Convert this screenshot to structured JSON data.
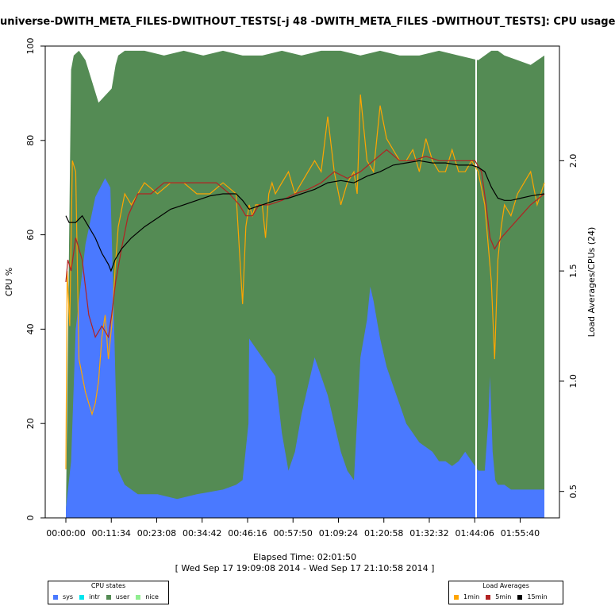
{
  "chart_data": {
    "type": "area",
    "title": "universe-DWITH_META_FILES-DWITHOUT_TESTS[-j 48 -DWITH_META_FILES -DWITHOUT_TESTS]: CPU usage",
    "ylabel": "CPU %",
    "y2label": "Load Averages/CPUs (24)",
    "xlabel": "Elapsed Time: 02:01:50",
    "xsubtitle": "[ Wed Sep 17 19:09:08 2014 - Wed Sep 17 21:10:58 2014 ]",
    "ylim": [
      0,
      100
    ],
    "y2lim": [
      0.38,
      2.52
    ],
    "yticks": [
      0,
      20,
      40,
      60,
      80,
      100
    ],
    "y2ticks": [
      0.5,
      1.0,
      1.5,
      2.0
    ],
    "xlim": [
      0,
      7310
    ],
    "xticks": [
      {
        "s": 0,
        "label": "00:00:00"
      },
      {
        "s": 694,
        "label": "00:11:34"
      },
      {
        "s": 1388,
        "label": "00:23:08"
      },
      {
        "s": 2082,
        "label": "00:34:42"
      },
      {
        "s": 2776,
        "label": "00:46:16"
      },
      {
        "s": 3470,
        "label": "00:57:50"
      },
      {
        "s": 4164,
        "label": "01:09:24"
      },
      {
        "s": 4858,
        "label": "01:20:58"
      },
      {
        "s": 5552,
        "label": "01:32:32"
      },
      {
        "s": 6246,
        "label": "01:44:06"
      },
      {
        "s": 6940,
        "label": "01:55:40"
      }
    ],
    "cpu_legend": {
      "title": "CPU states",
      "items": [
        {
          "name": "sys",
          "color": "#4a79ff"
        },
        {
          "name": "intr",
          "color": "#00e5ee"
        },
        {
          "name": "user",
          "color": "#548b54"
        },
        {
          "name": "nice",
          "color": "#90ee90"
        }
      ]
    },
    "load_legend": {
      "title": "Load Averages",
      "items": [
        {
          "name": "1min",
          "color": "#ffa500"
        },
        {
          "name": "5min",
          "color": "#b22222"
        },
        {
          "name": "15min",
          "color": "#000000"
        }
      ]
    },
    "sys_series": {
      "name": "sys",
      "x": [
        0,
        80,
        150,
        300,
        450,
        600,
        680,
        720,
        760,
        800,
        900,
        1100,
        1400,
        1700,
        2000,
        2400,
        2600,
        2700,
        2790,
        2800,
        2900,
        3000,
        3100,
        3200,
        3300,
        3400,
        3500,
        3600,
        3700,
        3800,
        3900,
        4000,
        4100,
        4200,
        4300,
        4400,
        4500,
        4600,
        4650,
        4700,
        4750,
        4800,
        4900,
        5000,
        5100,
        5200,
        5300,
        5400,
        5500,
        5600,
        5700,
        5800,
        5900,
        6000,
        6100,
        6200,
        6300,
        6400,
        6450,
        6480,
        6520,
        6560,
        6600,
        6700,
        6800,
        6900,
        7000,
        7100,
        7200,
        7310
      ],
      "values": [
        2,
        12,
        40,
        58,
        68,
        72,
        70,
        50,
        28,
        10,
        7,
        5,
        5,
        4,
        5,
        6,
        7,
        8,
        20,
        38,
        36,
        34,
        32,
        30,
        18,
        10,
        14,
        22,
        28,
        34,
        30,
        26,
        20,
        14,
        10,
        8,
        34,
        42,
        49,
        46,
        42,
        38,
        32,
        28,
        24,
        20,
        18,
        16,
        15,
        14,
        12,
        12,
        11,
        12,
        14,
        12,
        10,
        10,
        20,
        30,
        14,
        8,
        7,
        7,
        6,
        6,
        6,
        6,
        6,
        6
      ]
    },
    "user_series": {
      "name": "user",
      "x": [
        0,
        80,
        120,
        200,
        300,
        500,
        700,
        760,
        800,
        900,
        1200,
        1500,
        1800,
        2100,
        2400,
        2700,
        3000,
        3300,
        3600,
        3900,
        4200,
        4500,
        4800,
        5100,
        5400,
        5700,
        6000,
        6300,
        6500,
        6600,
        6700,
        6900,
        7100,
        7310
      ],
      "values": [
        0,
        95,
        98,
        99,
        97,
        88,
        91,
        96,
        98,
        99,
        99,
        98,
        99,
        98,
        99,
        98,
        98,
        99,
        98,
        99,
        99,
        98,
        99,
        98,
        98,
        99,
        98,
        97,
        99,
        99,
        98,
        97,
        96,
        98
      ]
    },
    "load_1min": {
      "name": "1min",
      "x": [
        0,
        20,
        60,
        100,
        150,
        200,
        300,
        400,
        450,
        500,
        550,
        600,
        650,
        700,
        750,
        800,
        900,
        1000,
        1200,
        1400,
        1600,
        1800,
        2000,
        2200,
        2400,
        2600,
        2700,
        2750,
        2800,
        2850,
        2900,
        3000,
        3050,
        3100,
        3150,
        3200,
        3300,
        3400,
        3500,
        3600,
        3700,
        3800,
        3900,
        4000,
        4100,
        4200,
        4300,
        4400,
        4450,
        4500,
        4600,
        4700,
        4800,
        4900,
        5000,
        5100,
        5200,
        5300,
        5400,
        5500,
        5600,
        5700,
        5800,
        5900,
        6000,
        6100,
        6200,
        6300,
        6400,
        6500,
        6550,
        6600,
        6650,
        6700,
        6800,
        6900,
        7000,
        7100,
        7200,
        7310
      ],
      "values": [
        0.6,
        1.5,
        1.25,
        2.0,
        1.95,
        1.1,
        0.95,
        0.85,
        0.9,
        1.0,
        1.2,
        1.3,
        1.1,
        1.25,
        1.5,
        1.7,
        1.85,
        1.8,
        1.9,
        1.85,
        1.9,
        1.9,
        1.85,
        1.85,
        1.9,
        1.85,
        1.35,
        1.7,
        1.8,
        1.75,
        1.8,
        1.8,
        1.65,
        1.85,
        1.9,
        1.85,
        1.9,
        1.95,
        1.85,
        1.9,
        1.95,
        2.0,
        1.95,
        2.2,
        1.95,
        1.8,
        1.9,
        1.95,
        1.85,
        2.3,
        2.0,
        1.95,
        2.25,
        2.1,
        2.05,
        2.0,
        2.0,
        2.05,
        1.95,
        2.1,
        2.0,
        1.95,
        1.95,
        2.05,
        1.95,
        1.95,
        2.0,
        1.95,
        1.8,
        1.45,
        1.1,
        1.55,
        1.7,
        1.8,
        1.75,
        1.85,
        1.9,
        1.95,
        1.8,
        1.9
      ]
    },
    "load_5min": {
      "name": "5min",
      "x": [
        0,
        30,
        80,
        150,
        250,
        350,
        450,
        550,
        650,
        700,
        760,
        850,
        950,
        1100,
        1300,
        1500,
        1700,
        1900,
        2100,
        2300,
        2500,
        2650,
        2750,
        2850,
        2950,
        3100,
        3300,
        3500,
        3700,
        3900,
        4100,
        4300,
        4500,
        4700,
        4900,
        5100,
        5300,
        5500,
        5700,
        5900,
        6100,
        6250,
        6350,
        6420,
        6480,
        6550,
        6650,
        6800,
        6950,
        7100,
        7310
      ],
      "values": [
        1.45,
        1.55,
        1.5,
        1.65,
        1.55,
        1.3,
        1.2,
        1.25,
        1.2,
        1.3,
        1.45,
        1.6,
        1.75,
        1.85,
        1.85,
        1.9,
        1.9,
        1.9,
        1.9,
        1.9,
        1.85,
        1.8,
        1.75,
        1.75,
        1.8,
        1.8,
        1.82,
        1.85,
        1.87,
        1.9,
        1.95,
        1.92,
        1.95,
        2.0,
        2.05,
        2.0,
        2.0,
        2.02,
        2.0,
        2.0,
        2.0,
        2.0,
        1.95,
        1.8,
        1.65,
        1.6,
        1.65,
        1.7,
        1.75,
        1.8,
        1.85
      ]
    },
    "load_15min": {
      "name": "15min",
      "x": [
        0,
        50,
        150,
        250,
        350,
        450,
        550,
        650,
        690,
        750,
        850,
        1000,
        1200,
        1400,
        1600,
        1800,
        2000,
        2200,
        2400,
        2600,
        2700,
        2800,
        2900,
        3000,
        3200,
        3400,
        3600,
        3800,
        4000,
        4200,
        4400,
        4600,
        4800,
        5000,
        5200,
        5400,
        5600,
        5800,
        6000,
        6200,
        6300,
        6400,
        6500,
        6600,
        6700,
        6800,
        6950,
        7100,
        7310
      ],
      "values": [
        1.75,
        1.72,
        1.72,
        1.75,
        1.7,
        1.65,
        1.58,
        1.53,
        1.5,
        1.55,
        1.6,
        1.65,
        1.7,
        1.74,
        1.78,
        1.8,
        1.82,
        1.84,
        1.85,
        1.85,
        1.82,
        1.78,
        1.79,
        1.8,
        1.82,
        1.83,
        1.85,
        1.87,
        1.9,
        1.91,
        1.9,
        1.93,
        1.95,
        1.98,
        1.99,
        2.0,
        1.99,
        1.99,
        1.98,
        1.98,
        1.97,
        1.95,
        1.88,
        1.83,
        1.82,
        1.82,
        1.83,
        1.84,
        1.85
      ]
    },
    "gaps": [
      {
        "s": 6255,
        "w": 10
      }
    ]
  }
}
